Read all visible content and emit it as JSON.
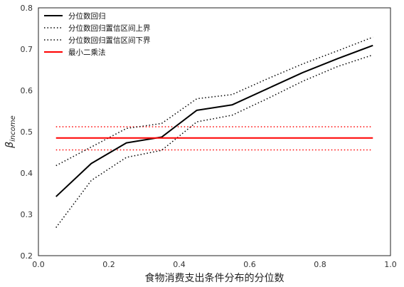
{
  "chart_data": {
    "type": "line",
    "title": "",
    "xlabel": "食物消费支出条件分布的分位数",
    "ylabel": "β_income",
    "ylabel_main": "β",
    "ylabel_sub": "income",
    "xlim": [
      0.0,
      1.0
    ],
    "ylim": [
      0.2,
      0.8
    ],
    "xticks": [
      "0.0",
      "0.2",
      "0.4",
      "0.6",
      "0.8",
      "1.0"
    ],
    "yticks": [
      "0.2",
      "0.3",
      "0.4",
      "0.5",
      "0.6",
      "0.7",
      "0.8"
    ],
    "grid": false,
    "legend_position": "top-left",
    "x": [
      0.05,
      0.15,
      0.25,
      0.35,
      0.45,
      0.55,
      0.65,
      0.75,
      0.85,
      0.95
    ],
    "series": [
      {
        "name": "分位数回归",
        "style": "solid",
        "color": "#000000",
        "values": [
          0.343,
          0.423,
          0.473,
          0.487,
          0.552,
          0.565,
          0.604,
          0.643,
          0.677,
          0.709
        ]
      },
      {
        "name": "分位数回归置信区间上界",
        "style": "dotted",
        "color": "#000000",
        "values": [
          0.418,
          0.463,
          0.508,
          0.52,
          0.58,
          0.59,
          0.628,
          0.664,
          0.696,
          0.729
        ]
      },
      {
        "name": "分位数回归置信区间下界",
        "style": "dotted",
        "color": "#000000",
        "values": [
          0.268,
          0.382,
          0.438,
          0.455,
          0.524,
          0.54,
          0.58,
          0.622,
          0.658,
          0.686
        ]
      },
      {
        "name": "最小二乘法",
        "style": "solid",
        "color": "#ff0000",
        "values": [
          0.485,
          0.485,
          0.485,
          0.485,
          0.485,
          0.485,
          0.485,
          0.485,
          0.485,
          0.485
        ]
      }
    ],
    "ols_ci_lines": {
      "upper": 0.512,
      "lower": 0.456,
      "style": "dotted",
      "color": "#ff0000"
    }
  }
}
